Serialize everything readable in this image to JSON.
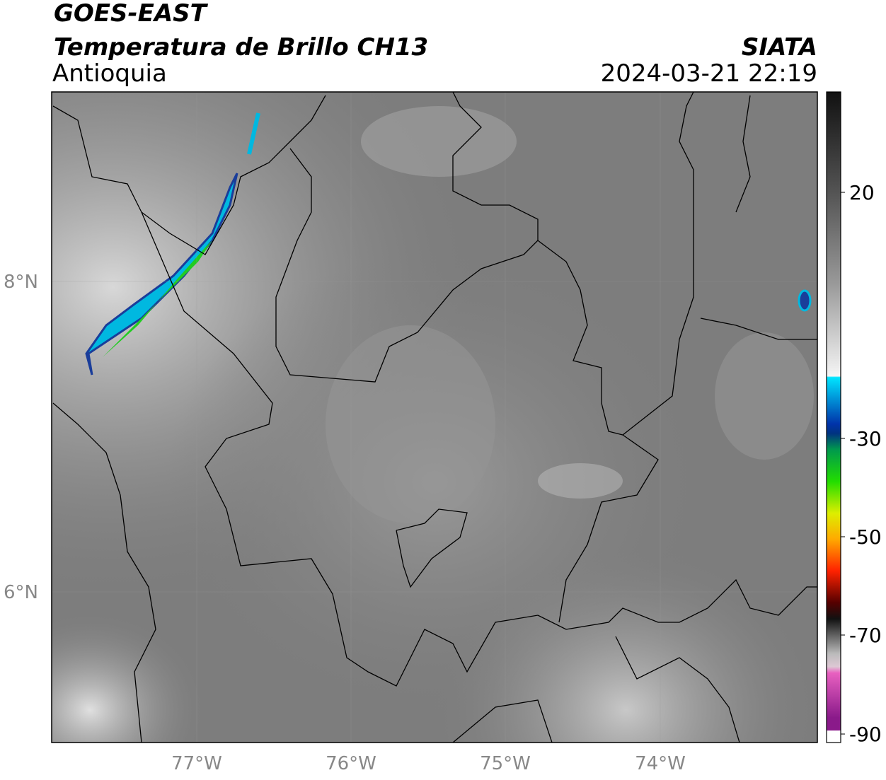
{
  "header": {
    "title": "GOES-EAST",
    "subtitle": "Temperatura de Brillo CH13",
    "region": "Antioquia",
    "source": "SIATA",
    "datetime": "2024-03-21 22:19"
  },
  "map": {
    "lat_labels": [
      "8°N",
      "6°N"
    ],
    "lon_labels": [
      "77°W",
      "76°W",
      "75°W",
      "74°W"
    ]
  },
  "colorbar": {
    "ticks": [
      20,
      -30,
      -50,
      -70,
      -90
    ]
  }
}
